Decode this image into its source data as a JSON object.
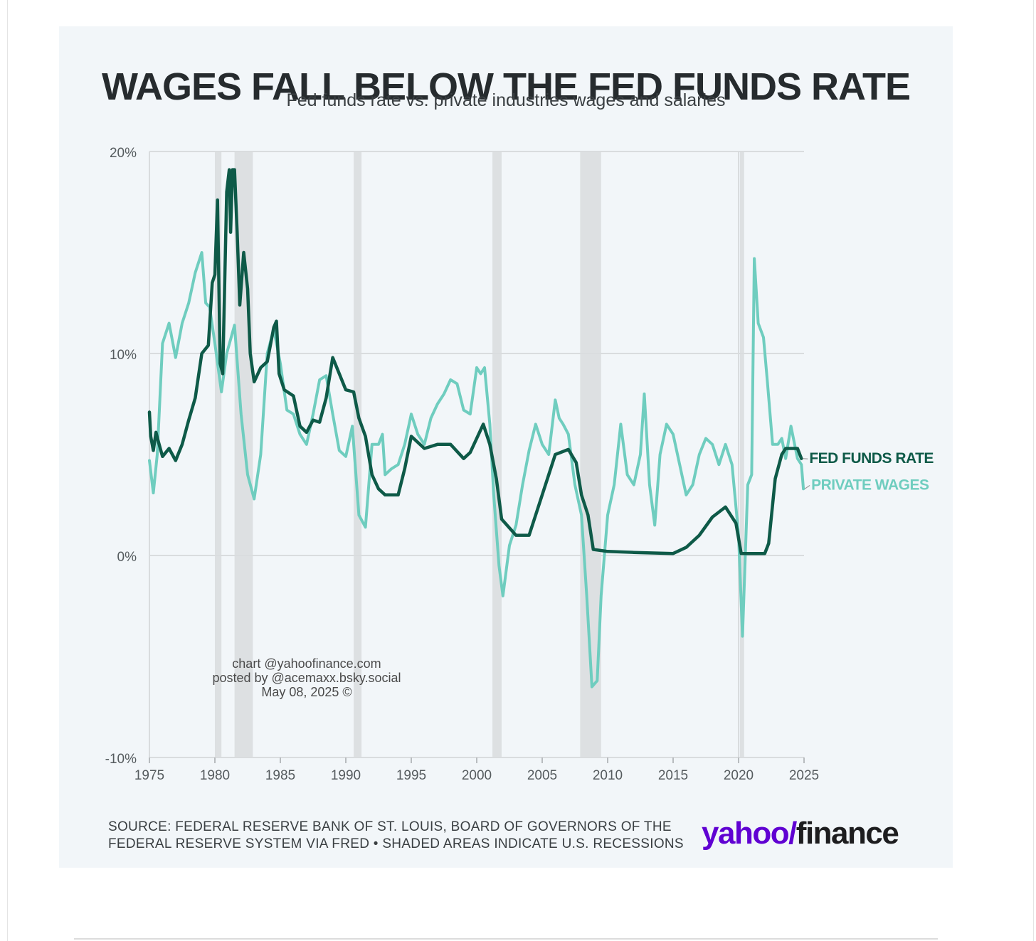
{
  "title": "WAGES FALL BELOW THE FED FUNDS RATE",
  "subtitle": "Fed funds rate vs. private industries wages and salaries",
  "watermark": [
    "chart @yahoofinance.com",
    "posted by @acemaxx.bsky.social",
    "May 08, 2025 ©"
  ],
  "source_lines": [
    "SOURCE: FEDERAL RESERVE BANK OF ST. LOUIS, BOARD OF GOVERNORS OF THE",
    "FEDERAL RESERVE SYSTEM VIA FRED • SHADED AREAS INDICATE U.S. RECESSIONS"
  ],
  "logo": {
    "yahoo": "yahoo/",
    "finance": "finance"
  },
  "colors": {
    "fed_funds": "#0e5a48",
    "private_wages": "#6fcdbf",
    "recession": "#dde0e2",
    "grid": "#d9dcde",
    "background": "#f2f6f9"
  },
  "chart_data": {
    "type": "line",
    "xlim": [
      1975,
      2025
    ],
    "ylim": [
      -10,
      20
    ],
    "x_ticks": [
      "1975",
      "1980",
      "1985",
      "1990",
      "1995",
      "2000",
      "2005",
      "2010",
      "2015",
      "2020",
      "2025"
    ],
    "y_ticks": [
      {
        "value": 20,
        "label": "20%"
      },
      {
        "value": 10,
        "label": "10%"
      },
      {
        "value": 0,
        "label": "0%"
      },
      {
        "value": -10,
        "label": "-10%"
      }
    ],
    "recessions": [
      [
        1980.0,
        1980.5
      ],
      [
        1981.5,
        1982.9
      ],
      [
        1990.6,
        1991.2
      ],
      [
        2001.2,
        2001.9
      ],
      [
        2007.9,
        2009.5
      ],
      [
        2020.1,
        2020.4
      ]
    ],
    "series": [
      {
        "name": "FED FUNDS RATE",
        "points": [
          [
            1975.0,
            7.1
          ],
          [
            1975.1,
            5.9
          ],
          [
            1975.3,
            5.2
          ],
          [
            1975.5,
            6.1
          ],
          [
            1975.7,
            5.6
          ],
          [
            1976.0,
            4.9
          ],
          [
            1976.5,
            5.3
          ],
          [
            1977.0,
            4.7
          ],
          [
            1977.5,
            5.5
          ],
          [
            1978.0,
            6.7
          ],
          [
            1978.5,
            7.8
          ],
          [
            1979.0,
            10.0
          ],
          [
            1979.5,
            10.4
          ],
          [
            1979.8,
            13.5
          ],
          [
            1980.0,
            13.9
          ],
          [
            1980.2,
            17.6
          ],
          [
            1980.4,
            9.5
          ],
          [
            1980.6,
            9.0
          ],
          [
            1980.9,
            18.0
          ],
          [
            1981.1,
            19.1
          ],
          [
            1981.2,
            16.0
          ],
          [
            1981.35,
            19.1
          ],
          [
            1981.5,
            19.1
          ],
          [
            1981.7,
            16.0
          ],
          [
            1981.9,
            12.4
          ],
          [
            1982.2,
            15.0
          ],
          [
            1982.5,
            13.2
          ],
          [
            1982.7,
            10.0
          ],
          [
            1983.0,
            8.6
          ],
          [
            1983.5,
            9.3
          ],
          [
            1984.0,
            9.6
          ],
          [
            1984.5,
            11.3
          ],
          [
            1984.7,
            11.6
          ],
          [
            1984.9,
            9.0
          ],
          [
            1985.3,
            8.2
          ],
          [
            1986.0,
            7.9
          ],
          [
            1986.5,
            6.4
          ],
          [
            1987.0,
            6.1
          ],
          [
            1987.5,
            6.7
          ],
          [
            1988.0,
            6.6
          ],
          [
            1988.5,
            7.8
          ],
          [
            1989.0,
            9.8
          ],
          [
            1989.5,
            9.0
          ],
          [
            1990.0,
            8.2
          ],
          [
            1990.6,
            8.1
          ],
          [
            1991.0,
            6.8
          ],
          [
            1991.5,
            5.9
          ],
          [
            1992.0,
            4.0
          ],
          [
            1992.5,
            3.3
          ],
          [
            1993.0,
            3.0
          ],
          [
            1994.0,
            3.0
          ],
          [
            1994.5,
            4.3
          ],
          [
            1995.0,
            5.9
          ],
          [
            1996.0,
            5.3
          ],
          [
            1997.0,
            5.5
          ],
          [
            1998.0,
            5.5
          ],
          [
            1999.0,
            4.8
          ],
          [
            1999.5,
            5.1
          ],
          [
            2000.0,
            5.8
          ],
          [
            2000.5,
            6.5
          ],
          [
            2001.0,
            5.5
          ],
          [
            2001.5,
            3.8
          ],
          [
            2001.9,
            1.8
          ],
          [
            2003.0,
            1.0
          ],
          [
            2004.0,
            1.0
          ],
          [
            2005.0,
            3.0
          ],
          [
            2006.0,
            5.0
          ],
          [
            2007.0,
            5.25
          ],
          [
            2007.6,
            4.6
          ],
          [
            2008.0,
            3.0
          ],
          [
            2008.5,
            2.0
          ],
          [
            2008.9,
            0.3
          ],
          [
            2010.0,
            0.2
          ],
          [
            2012.0,
            0.15
          ],
          [
            2015.0,
            0.1
          ],
          [
            2016.0,
            0.4
          ],
          [
            2017.0,
            1.0
          ],
          [
            2018.0,
            1.9
          ],
          [
            2019.0,
            2.4
          ],
          [
            2019.8,
            1.6
          ],
          [
            2020.2,
            0.1
          ],
          [
            2022.0,
            0.1
          ],
          [
            2022.3,
            0.6
          ],
          [
            2022.8,
            3.8
          ],
          [
            2023.3,
            5.0
          ],
          [
            2023.6,
            5.3
          ],
          [
            2024.5,
            5.3
          ],
          [
            2024.8,
            4.8
          ]
        ]
      },
      {
        "name": "PRIVATE WAGES",
        "points": [
          [
            1975.0,
            4.7
          ],
          [
            1975.3,
            3.1
          ],
          [
            1975.6,
            5.0
          ],
          [
            1976.0,
            10.5
          ],
          [
            1976.5,
            11.5
          ],
          [
            1977.0,
            9.8
          ],
          [
            1977.5,
            11.5
          ],
          [
            1978.0,
            12.5
          ],
          [
            1978.5,
            14.0
          ],
          [
            1979.0,
            15.0
          ],
          [
            1979.3,
            12.5
          ],
          [
            1979.6,
            12.3
          ],
          [
            1980.0,
            10.5
          ],
          [
            1980.5,
            8.1
          ],
          [
            1980.9,
            10.0
          ],
          [
            1981.5,
            11.4
          ],
          [
            1982.0,
            7.0
          ],
          [
            1982.5,
            4.0
          ],
          [
            1983.0,
            2.8
          ],
          [
            1983.5,
            5.0
          ],
          [
            1984.0,
            10.0
          ],
          [
            1984.5,
            11.2
          ],
          [
            1985.0,
            9.5
          ],
          [
            1985.5,
            7.2
          ],
          [
            1986.0,
            7.0
          ],
          [
            1986.5,
            6.0
          ],
          [
            1987.0,
            5.5
          ],
          [
            1987.5,
            7.0
          ],
          [
            1988.0,
            8.7
          ],
          [
            1988.5,
            8.9
          ],
          [
            1989.0,
            7.0
          ],
          [
            1989.5,
            5.2
          ],
          [
            1990.0,
            4.9
          ],
          [
            1990.5,
            6.4
          ],
          [
            1991.0,
            2.0
          ],
          [
            1991.5,
            1.4
          ],
          [
            1992.0,
            5.5
          ],
          [
            1992.5,
            5.5
          ],
          [
            1992.8,
            6.0
          ],
          [
            1993.0,
            4.0
          ],
          [
            1993.5,
            4.3
          ],
          [
            1994.0,
            4.5
          ],
          [
            1994.5,
            5.5
          ],
          [
            1995.0,
            7.0
          ],
          [
            1995.5,
            6.0
          ],
          [
            1996.0,
            5.5
          ],
          [
            1996.5,
            6.8
          ],
          [
            1997.0,
            7.5
          ],
          [
            1997.5,
            8.0
          ],
          [
            1998.0,
            8.7
          ],
          [
            1998.5,
            8.5
          ],
          [
            1999.0,
            7.2
          ],
          [
            1999.5,
            7.0
          ],
          [
            2000.0,
            9.3
          ],
          [
            2000.3,
            9.0
          ],
          [
            2000.6,
            9.3
          ],
          [
            2001.0,
            6.5
          ],
          [
            2001.3,
            3.0
          ],
          [
            2001.7,
            -0.5
          ],
          [
            2002.0,
            -2.0
          ],
          [
            2002.5,
            0.5
          ],
          [
            2003.0,
            1.5
          ],
          [
            2003.5,
            3.5
          ],
          [
            2004.0,
            5.2
          ],
          [
            2004.5,
            6.5
          ],
          [
            2005.0,
            5.5
          ],
          [
            2005.5,
            5.0
          ],
          [
            2006.0,
            7.7
          ],
          [
            2006.3,
            6.8
          ],
          [
            2006.6,
            6.5
          ],
          [
            2007.0,
            6.0
          ],
          [
            2007.5,
            3.5
          ],
          [
            2008.0,
            2.0
          ],
          [
            2008.4,
            -2.0
          ],
          [
            2008.8,
            -6.5
          ],
          [
            2009.2,
            -6.2
          ],
          [
            2009.5,
            -2.0
          ],
          [
            2010.0,
            2.0
          ],
          [
            2010.5,
            3.5
          ],
          [
            2011.0,
            6.5
          ],
          [
            2011.5,
            4.0
          ],
          [
            2012.0,
            3.5
          ],
          [
            2012.5,
            5.0
          ],
          [
            2012.8,
            8.0
          ],
          [
            2013.2,
            3.5
          ],
          [
            2013.6,
            1.5
          ],
          [
            2014.0,
            5.0
          ],
          [
            2014.5,
            6.5
          ],
          [
            2015.0,
            6.0
          ],
          [
            2015.5,
            4.5
          ],
          [
            2016.0,
            3.0
          ],
          [
            2016.5,
            3.5
          ],
          [
            2017.0,
            5.0
          ],
          [
            2017.5,
            5.8
          ],
          [
            2018.0,
            5.5
          ],
          [
            2018.5,
            4.5
          ],
          [
            2019.0,
            5.5
          ],
          [
            2019.5,
            4.5
          ],
          [
            2020.0,
            1.0
          ],
          [
            2020.3,
            -4.0
          ],
          [
            2020.7,
            3.5
          ],
          [
            2021.0,
            4.0
          ],
          [
            2021.2,
            14.7
          ],
          [
            2021.5,
            11.5
          ],
          [
            2021.9,
            10.8
          ],
          [
            2022.2,
            8.6
          ],
          [
            2022.6,
            5.5
          ],
          [
            2023.0,
            5.5
          ],
          [
            2023.3,
            5.8
          ],
          [
            2023.6,
            4.8
          ],
          [
            2024.0,
            6.4
          ],
          [
            2024.5,
            4.8
          ],
          [
            2024.8,
            4.5
          ],
          [
            2024.95,
            3.3
          ]
        ]
      }
    ]
  }
}
